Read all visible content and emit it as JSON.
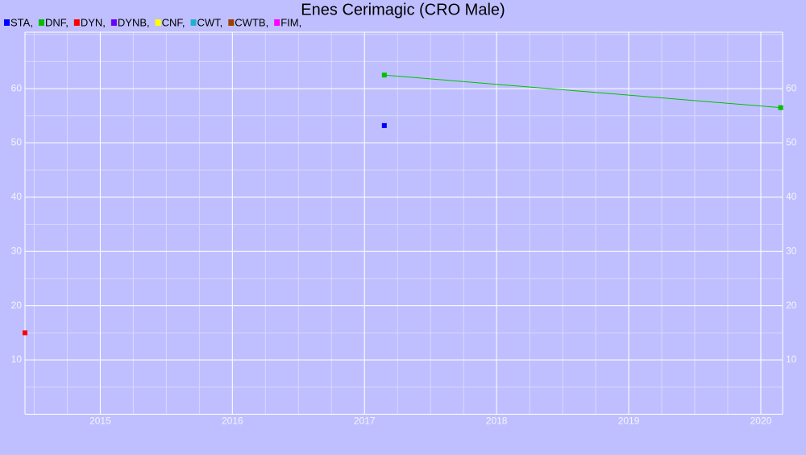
{
  "chart_data": {
    "type": "line",
    "title": "Enes Cerimagic (CRO Male)",
    "series": [
      {
        "name": "STA,",
        "color": "#0000ff",
        "x": [
          2017.15
        ],
        "values": [
          53.2
        ]
      },
      {
        "name": "DNF,",
        "color": "#00c000",
        "x": [
          2017.15,
          2020.15
        ],
        "values": [
          62.5,
          56.5
        ]
      },
      {
        "name": "DYN,",
        "color": "#ff0000",
        "x": [
          2014.43
        ],
        "values": [
          15.0
        ]
      },
      {
        "name": "DYNB,",
        "color": "#6a00ff",
        "x": [],
        "values": []
      },
      {
        "name": "CNF,",
        "color": "#ffff00",
        "x": [],
        "values": []
      },
      {
        "name": "CWT,",
        "color": "#20b0d0",
        "x": [],
        "values": []
      },
      {
        "name": "CWTB,",
        "color": "#a04000",
        "x": [],
        "values": []
      },
      {
        "name": "FIM,",
        "color": "#ff00ff",
        "x": [],
        "values": []
      }
    ],
    "xlim": [
      2014.43,
      2020.165
    ],
    "xticks": [
      2015,
      2016,
      2017,
      2018,
      2019,
      2020
    ],
    "ylim": [
      0,
      70.4
    ],
    "yticks": [
      10,
      20,
      30,
      40,
      50,
      60
    ],
    "grid": true
  }
}
